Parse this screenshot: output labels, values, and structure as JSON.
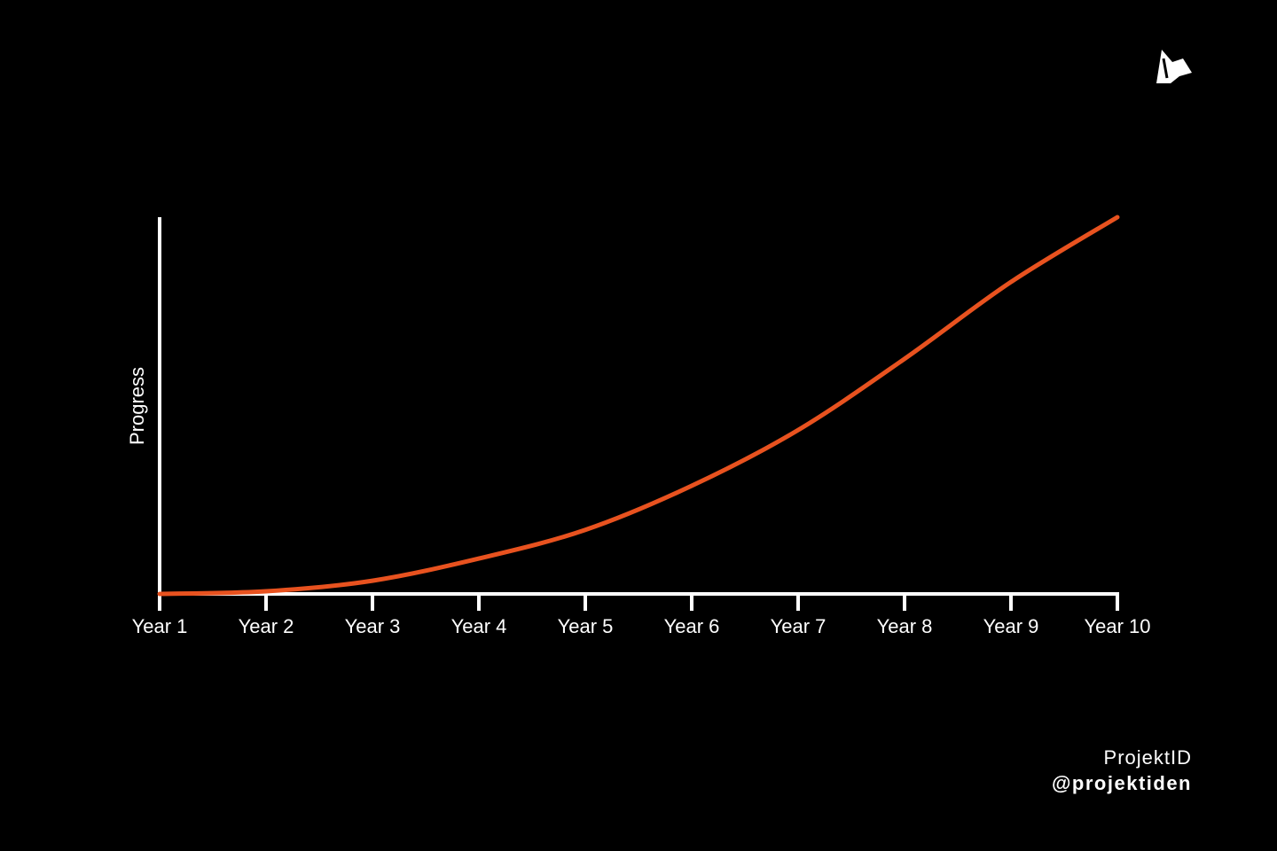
{
  "chart_data": {
    "type": "line",
    "y_label": "Progress",
    "categories": [
      "Year 1",
      "Year 2",
      "Year 3",
      "Year 4",
      "Year 5",
      "Year 6",
      "Year 7",
      "Year 8",
      "Year 9",
      "Year 10"
    ],
    "series": [
      {
        "color": "#e8521f",
        "values": [
          0,
          0.7,
          3.5,
          9.4,
          17,
          28.7,
          43.5,
          62.4,
          82.8,
          100
        ]
      }
    ],
    "ylim": [
      0,
      100
    ],
    "grid": false
  },
  "footer": {
    "brand": "ProjektID",
    "handle": "@projektiden"
  }
}
